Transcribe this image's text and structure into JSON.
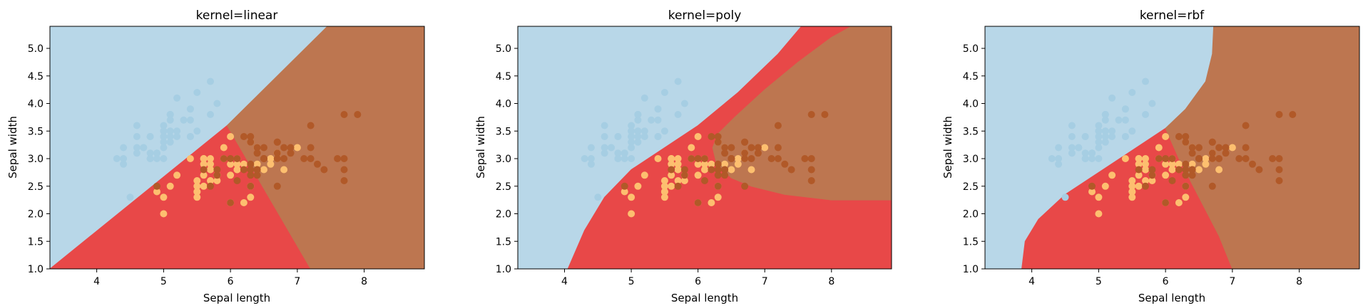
{
  "colors": {
    "class_0": "#a6cee3",
    "class_1": "#fdbf6f",
    "class_2": "#b15928",
    "region_0": "#b8d7e8",
    "region_1": "#e84848",
    "region_2": "#bd7650",
    "axes_frame": "#000000"
  },
  "chart_data": [
    {
      "type": "scatter",
      "title": "kernel=linear",
      "xlabel": "Sepal length",
      "ylabel": "Sepal width",
      "xlim": [
        3.3,
        8.9
      ],
      "ylim": [
        1.0,
        5.4
      ],
      "xticks": [
        4,
        5,
        6,
        7,
        8
      ],
      "yticks": [
        1.0,
        1.5,
        2.0,
        2.5,
        3.0,
        3.5,
        4.0,
        4.5,
        5.0
      ],
      "decision_regions": [
        {
          "class": 0,
          "polygon": [
            [
              3.3,
              1.0
            ],
            [
              3.3,
              5.4
            ],
            [
              4.35,
              5.4
            ]
          ]
        },
        {
          "class": 0,
          "polygon": [
            [
              3.3,
              1.0
            ],
            [
              3.3,
              5.4
            ],
            [
              7.45,
              5.4
            ],
            [
              5.95,
              3.6
            ]
          ]
        },
        {
          "class": 1,
          "polygon": [
            [
              3.3,
              1.0
            ],
            [
              7.2,
              1.0
            ],
            [
              5.95,
              3.6
            ]
          ]
        },
        {
          "class": 2,
          "polygon": [
            [
              7.2,
              1.0
            ],
            [
              8.9,
              1.0
            ],
            [
              8.9,
              5.4
            ],
            [
              7.45,
              5.4
            ],
            [
              5.95,
              3.6
            ]
          ]
        }
      ]
    },
    {
      "type": "scatter",
      "title": "kernel=poly",
      "xlabel": "Sepal length",
      "ylabel": "Sepal width",
      "xlim": [
        3.3,
        8.9
      ],
      "ylim": [
        1.0,
        5.4
      ],
      "xticks": [
        4,
        5,
        6,
        7,
        8
      ],
      "yticks": [
        1.0,
        1.5,
        2.0,
        2.5,
        3.0,
        3.5,
        4.0,
        4.5,
        5.0
      ],
      "decision_regions": [
        {
          "class": 0,
          "polygon": [
            [
              3.3,
              1.0
            ],
            [
              4.05,
              1.0
            ],
            [
              4.3,
              1.7
            ],
            [
              4.6,
              2.3
            ],
            [
              5.0,
              2.8
            ],
            [
              5.5,
              3.2
            ],
            [
              6.0,
              3.6
            ],
            [
              6.6,
              4.2
            ],
            [
              7.2,
              4.9
            ],
            [
              7.55,
              5.4
            ],
            [
              3.3,
              5.4
            ]
          ]
        },
        {
          "class": 1,
          "polygon": [
            [
              4.05,
              1.0
            ],
            [
              8.9,
              1.0
            ],
            [
              8.9,
              2.25
            ],
            [
              8.0,
              2.25
            ],
            [
              7.3,
              2.35
            ],
            [
              6.8,
              2.5
            ],
            [
              6.5,
              2.65
            ],
            [
              6.28,
              2.9
            ],
            [
              6.22,
              3.2
            ],
            [
              6.3,
              3.45
            ],
            [
              6.55,
              3.75
            ],
            [
              7.0,
              4.25
            ],
            [
              7.5,
              4.75
            ],
            [
              8.0,
              5.2
            ],
            [
              8.3,
              5.4
            ],
            [
              7.55,
              5.4
            ],
            [
              7.2,
              4.9
            ],
            [
              6.6,
              4.2
            ],
            [
              6.0,
              3.6
            ],
            [
              5.5,
              3.2
            ],
            [
              5.0,
              2.8
            ],
            [
              4.6,
              2.3
            ],
            [
              4.3,
              1.7
            ]
          ]
        },
        {
          "class": 2,
          "polygon": [
            [
              8.9,
              2.25
            ],
            [
              8.9,
              5.4
            ],
            [
              8.3,
              5.4
            ],
            [
              8.0,
              5.2
            ],
            [
              7.5,
              4.75
            ],
            [
              7.0,
              4.25
            ],
            [
              6.55,
              3.75
            ],
            [
              6.3,
              3.45
            ],
            [
              6.22,
              3.2
            ],
            [
              6.28,
              2.9
            ],
            [
              6.5,
              2.65
            ],
            [
              6.8,
              2.5
            ],
            [
              7.3,
              2.35
            ],
            [
              8.0,
              2.25
            ]
          ]
        }
      ]
    },
    {
      "type": "scatter",
      "title": "kernel=rbf",
      "xlabel": "Sepal length",
      "ylabel": "Sepal width",
      "xlim": [
        3.3,
        8.9
      ],
      "ylim": [
        1.0,
        5.4
      ],
      "xticks": [
        4,
        5,
        6,
        7,
        8
      ],
      "yticks": [
        1.0,
        1.5,
        2.0,
        2.5,
        3.0,
        3.5,
        4.0,
        4.5,
        5.0
      ],
      "decision_regions": [
        {
          "class": 0,
          "polygon": [
            [
              3.3,
              1.0
            ],
            [
              3.85,
              1.0
            ],
            [
              3.9,
              1.5
            ],
            [
              4.1,
              1.9
            ],
            [
              4.5,
              2.35
            ],
            [
              5.0,
              2.75
            ],
            [
              5.5,
              3.15
            ],
            [
              6.0,
              3.55
            ],
            [
              6.3,
              3.9
            ],
            [
              6.6,
              4.4
            ],
            [
              6.7,
              4.9
            ],
            [
              6.72,
              5.4
            ],
            [
              3.3,
              5.4
            ]
          ]
        },
        {
          "class": 1,
          "polygon": [
            [
              3.85,
              1.0
            ],
            [
              7.0,
              1.0
            ],
            [
              6.8,
              1.6
            ],
            [
              6.5,
              2.3
            ],
            [
              6.2,
              3.0
            ],
            [
              6.0,
              3.55
            ],
            [
              5.5,
              3.15
            ],
            [
              5.0,
              2.75
            ],
            [
              4.5,
              2.35
            ],
            [
              4.1,
              1.9
            ],
            [
              3.9,
              1.5
            ]
          ]
        },
        {
          "class": 2,
          "polygon": [
            [
              7.0,
              1.0
            ],
            [
              8.9,
              1.0
            ],
            [
              8.9,
              5.4
            ],
            [
              6.72,
              5.4
            ],
            [
              6.7,
              4.9
            ],
            [
              6.6,
              4.4
            ],
            [
              6.3,
              3.9
            ],
            [
              6.0,
              3.55
            ],
            [
              6.2,
              3.0
            ],
            [
              6.5,
              2.3
            ],
            [
              6.8,
              1.6
            ]
          ]
        }
      ]
    }
  ],
  "points": {
    "class_0": [
      [
        5.1,
        3.5
      ],
      [
        4.9,
        3.0
      ],
      [
        4.7,
        3.2
      ],
      [
        4.6,
        3.1
      ],
      [
        5.0,
        3.6
      ],
      [
        5.4,
        3.9
      ],
      [
        4.6,
        3.4
      ],
      [
        5.0,
        3.4
      ],
      [
        4.4,
        2.9
      ],
      [
        4.9,
        3.1
      ],
      [
        5.4,
        3.7
      ],
      [
        4.8,
        3.4
      ],
      [
        4.8,
        3.0
      ],
      [
        4.3,
        3.0
      ],
      [
        5.8,
        4.0
      ],
      [
        5.7,
        4.4
      ],
      [
        5.4,
        3.9
      ],
      [
        5.1,
        3.5
      ],
      [
        5.7,
        3.8
      ],
      [
        5.1,
        3.8
      ],
      [
        5.4,
        3.4
      ],
      [
        5.1,
        3.7
      ],
      [
        4.6,
        3.6
      ],
      [
        5.1,
        3.3
      ],
      [
        4.8,
        3.4
      ],
      [
        5.0,
        3.0
      ],
      [
        5.0,
        3.4
      ],
      [
        5.2,
        3.5
      ],
      [
        5.2,
        3.4
      ],
      [
        4.7,
        3.2
      ],
      [
        4.8,
        3.1
      ],
      [
        5.4,
        3.4
      ],
      [
        5.2,
        4.1
      ],
      [
        5.5,
        4.2
      ],
      [
        4.9,
        3.1
      ],
      [
        5.0,
        3.2
      ],
      [
        5.5,
        3.5
      ],
      [
        4.4,
        3.0
      ],
      [
        5.1,
        3.4
      ],
      [
        5.0,
        3.5
      ],
      [
        4.5,
        2.3
      ],
      [
        4.4,
        3.2
      ],
      [
        5.0,
        3.5
      ],
      [
        5.1,
        3.8
      ],
      [
        4.8,
        3.0
      ],
      [
        5.1,
        3.8
      ],
      [
        4.6,
        3.2
      ],
      [
        5.3,
        3.7
      ],
      [
        5.0,
        3.3
      ]
    ],
    "class_1": [
      [
        7.0,
        3.2
      ],
      [
        6.4,
        3.2
      ],
      [
        6.9,
        3.1
      ],
      [
        5.5,
        2.3
      ],
      [
        6.5,
        2.8
      ],
      [
        5.7,
        2.8
      ],
      [
        6.3,
        3.3
      ],
      [
        4.9,
        2.4
      ],
      [
        6.6,
        2.9
      ],
      [
        5.2,
        2.7
      ],
      [
        5.0,
        2.0
      ],
      [
        5.9,
        3.0
      ],
      [
        6.0,
        2.2
      ],
      [
        6.1,
        2.9
      ],
      [
        5.6,
        2.9
      ],
      [
        6.7,
        3.1
      ],
      [
        5.6,
        3.0
      ],
      [
        5.8,
        2.7
      ],
      [
        6.2,
        2.2
      ],
      [
        5.6,
        2.5
      ],
      [
        5.9,
        3.2
      ],
      [
        6.1,
        2.8
      ],
      [
        6.3,
        2.5
      ],
      [
        6.1,
        2.8
      ],
      [
        6.4,
        2.9
      ],
      [
        6.6,
        3.0
      ],
      [
        6.8,
        2.8
      ],
      [
        6.7,
        3.0
      ],
      [
        6.0,
        2.9
      ],
      [
        5.7,
        2.6
      ],
      [
        5.5,
        2.4
      ],
      [
        5.5,
        2.4
      ],
      [
        5.8,
        2.7
      ],
      [
        6.0,
        2.7
      ],
      [
        5.4,
        3.0
      ],
      [
        6.0,
        3.4
      ],
      [
        6.7,
        3.1
      ],
      [
        6.3,
        2.3
      ],
      [
        5.6,
        3.0
      ],
      [
        5.5,
        2.5
      ],
      [
        5.5,
        2.6
      ],
      [
        6.1,
        3.0
      ],
      [
        5.8,
        2.6
      ],
      [
        5.0,
        2.3
      ],
      [
        5.6,
        2.7
      ],
      [
        5.7,
        3.0
      ],
      [
        5.7,
        2.9
      ],
      [
        6.2,
        2.9
      ],
      [
        5.1,
        2.5
      ],
      [
        5.7,
        2.8
      ]
    ],
    "class_2": [
      [
        6.3,
        3.3
      ],
      [
        5.8,
        2.7
      ],
      [
        7.1,
        3.0
      ],
      [
        6.3,
        2.9
      ],
      [
        6.5,
        3.0
      ],
      [
        7.6,
        3.0
      ],
      [
        4.9,
        2.5
      ],
      [
        7.3,
        2.9
      ],
      [
        6.7,
        2.5
      ],
      [
        7.2,
        3.6
      ],
      [
        6.5,
        3.2
      ],
      [
        6.4,
        2.7
      ],
      [
        6.8,
        3.0
      ],
      [
        5.7,
        2.5
      ],
      [
        5.8,
        2.8
      ],
      [
        6.4,
        3.2
      ],
      [
        6.5,
        3.0
      ],
      [
        7.7,
        3.8
      ],
      [
        7.7,
        2.6
      ],
      [
        6.0,
        2.2
      ],
      [
        6.9,
        3.2
      ],
      [
        5.6,
        2.8
      ],
      [
        7.7,
        2.8
      ],
      [
        6.3,
        2.7
      ],
      [
        6.7,
        3.3
      ],
      [
        7.2,
        3.2
      ],
      [
        6.2,
        2.8
      ],
      [
        6.1,
        3.0
      ],
      [
        6.4,
        2.8
      ],
      [
        7.2,
        3.0
      ],
      [
        7.4,
        2.8
      ],
      [
        7.9,
        3.8
      ],
      [
        6.4,
        2.8
      ],
      [
        6.3,
        2.8
      ],
      [
        6.1,
        2.6
      ],
      [
        7.7,
        3.0
      ],
      [
        6.3,
        3.4
      ],
      [
        6.4,
        3.1
      ],
      [
        6.0,
        3.0
      ],
      [
        6.9,
        3.1
      ],
      [
        6.7,
        3.1
      ],
      [
        6.9,
        3.1
      ],
      [
        6.8,
        3.2
      ],
      [
        6.7,
        3.3
      ],
      [
        6.7,
        3.0
      ],
      [
        6.3,
        2.5
      ],
      [
        6.5,
        3.0
      ],
      [
        6.2,
        3.4
      ],
      [
        5.9,
        3.0
      ]
    ]
  }
}
